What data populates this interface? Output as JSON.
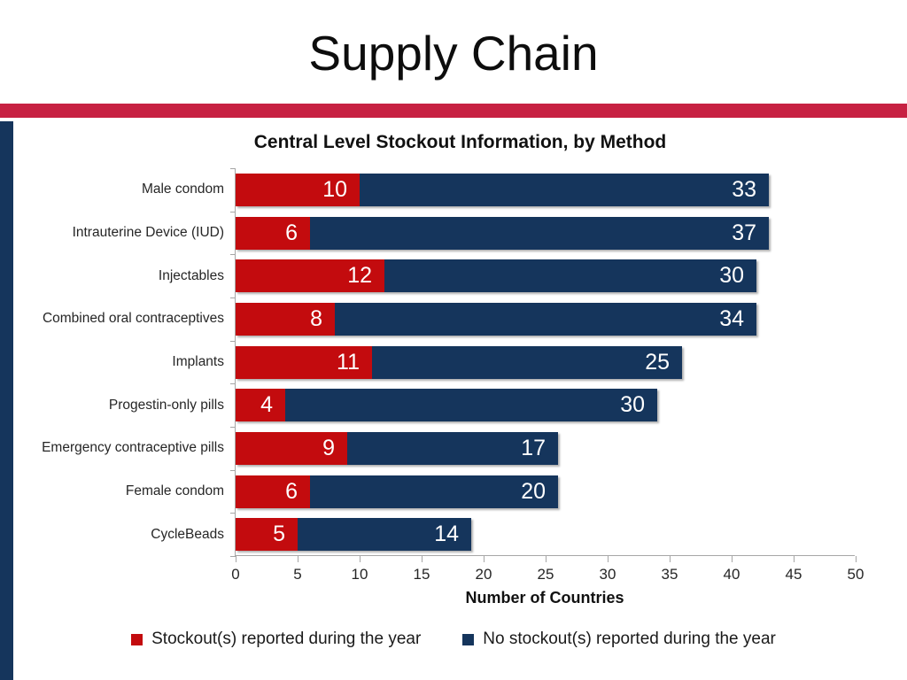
{
  "slide": {
    "title": "Supply Chain"
  },
  "colors": {
    "stockout_red": "#c30b0e",
    "no_stockout_navy": "#15355c",
    "top_accent_strip": "#c72142",
    "left_accent_strip": "#15355c",
    "axis_gray": "#a6a6a6",
    "value_label_white": "#ffffff"
  },
  "chart_data": {
    "type": "bar",
    "orientation": "horizontal",
    "stacked": true,
    "title": "Central Level Stockout Information, by Method",
    "xlabel": "Number of Countries",
    "xlim": [
      0,
      50
    ],
    "xticks": [
      0,
      5,
      10,
      15,
      20,
      25,
      30,
      35,
      40,
      45,
      50
    ],
    "grid": false,
    "legend_position": "bottom",
    "data_labels": "inside-end white",
    "categories": [
      "Male condom",
      "Intrauterine Device (IUD)",
      "Injectables",
      "Combined oral contraceptives",
      "Implants",
      "Progestin-only pills",
      "Emergency contraceptive pills",
      "Female condom",
      "CycleBeads"
    ],
    "series": [
      {
        "name": "Stockout(s) reported during the year",
        "color": "#c30b0e",
        "values": [
          10,
          6,
          12,
          8,
          11,
          4,
          9,
          6,
          5
        ]
      },
      {
        "name": "No stockout(s) reported during the year",
        "color": "#15355c",
        "values": [
          33,
          37,
          30,
          34,
          25,
          30,
          17,
          20,
          14
        ]
      }
    ]
  }
}
